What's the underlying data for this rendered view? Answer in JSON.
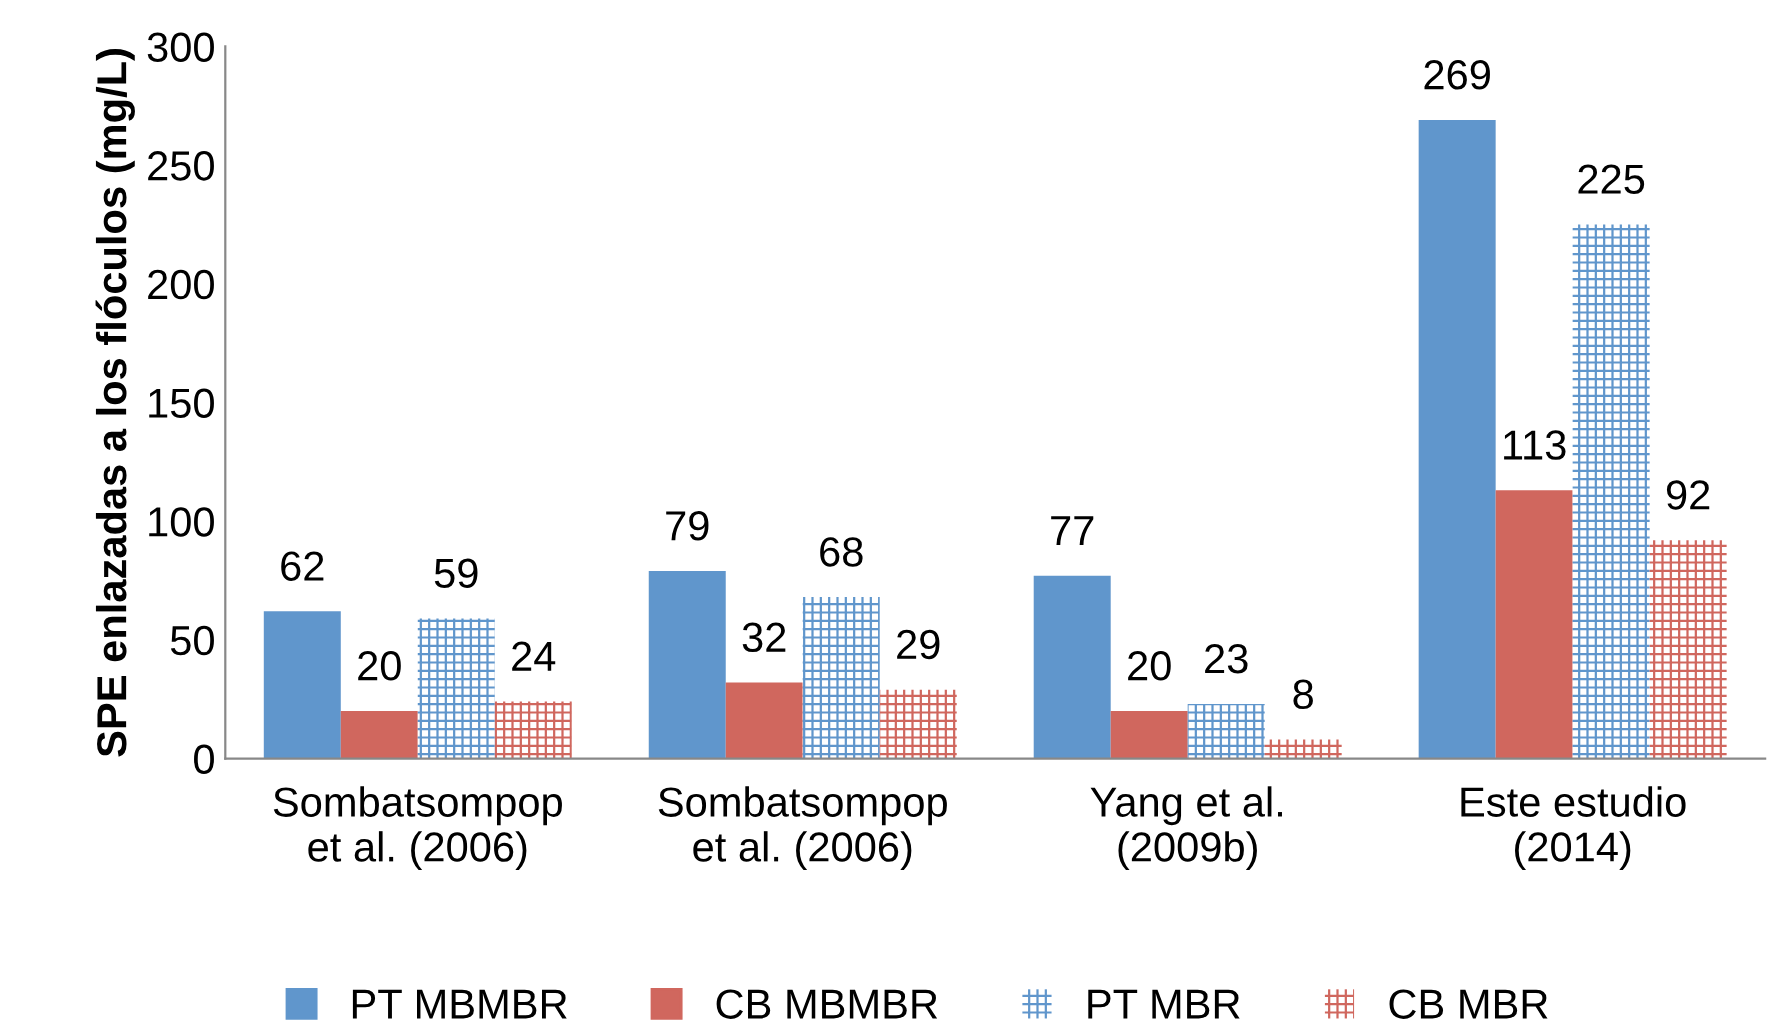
{
  "chart_data": {
    "type": "bar",
    "ylabel": "SPE enlazadas a los flóculos (mg/L)",
    "categories": [
      "Sombatsompop\net al. (2006)",
      "Sombatsompop\net al. (2006)",
      "Yang et al.\n(2009b)",
      "Este estudio\n(2014)"
    ],
    "series": [
      {
        "name": "PT MBMBR",
        "color": "#6096cc",
        "values": [
          62,
          79,
          77,
          269
        ]
      },
      {
        "name": "CB MBMBR",
        "color": "#d0675e",
        "values": [
          20,
          32,
          20,
          113
        ]
      },
      {
        "name": "PT MBR",
        "color": "#6096cc",
        "values": [
          59,
          68,
          23,
          225
        ]
      },
      {
        "name": "CB MBR",
        "color": "#d0675e",
        "values": [
          24,
          29,
          8,
          92
        ]
      }
    ],
    "ylim": [
      0,
      300
    ],
    "yticks": [
      0,
      50,
      100,
      150,
      200,
      250,
      300
    ],
    "grid": false,
    "legend": "bottom",
    "data_labels": true
  }
}
